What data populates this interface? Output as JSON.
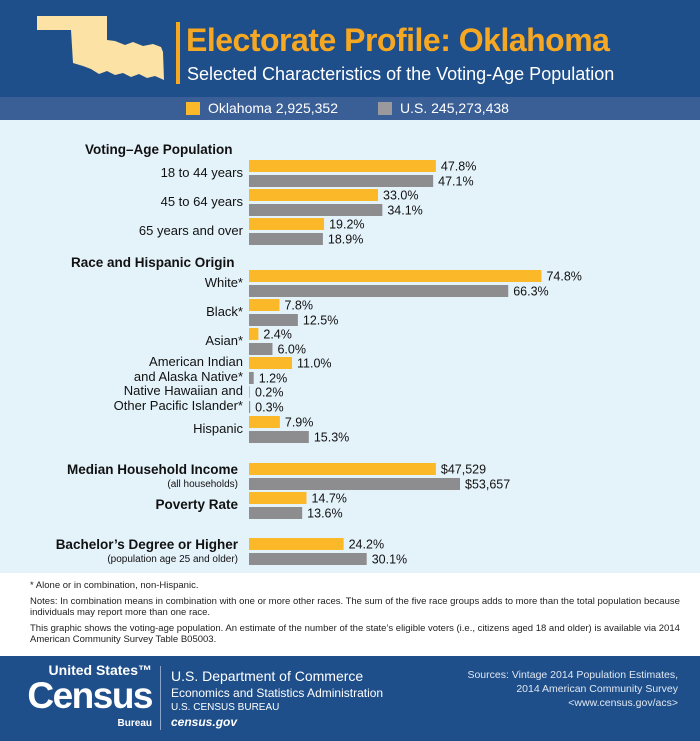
{
  "header": {
    "title": "Electorate Profile: Oklahoma",
    "subtitle": "Selected Characteristics of the Voting-Age Population"
  },
  "legend": {
    "state_label": "Oklahoma 2,925,352",
    "us_label": "U.S. 245,273,438"
  },
  "colors": {
    "state": "#fbb829",
    "us": "#8d8d8f",
    "header_bg": "#1f4f8a",
    "chart_bg": "#e4f2fa",
    "accent": "#f7a823"
  },
  "chart_data": {
    "type": "bar",
    "orientation": "horizontal",
    "series": [
      {
        "name": "Oklahoma 2,925,352",
        "color": "#fbb829"
      },
      {
        "name": "U.S. 245,273,438",
        "color": "#8d8d8f"
      }
    ],
    "sections": [
      {
        "heading": "Voting–Age Population",
        "heading_sub": "",
        "rows": [
          {
            "label": [
              "18 to 44 years"
            ],
            "values": [
              47.8,
              47.1
            ],
            "value_labels": [
              "47.8%",
              "47.1%"
            ]
          },
          {
            "label": [
              "45 to 64 years"
            ],
            "values": [
              33.0,
              34.1
            ],
            "value_labels": [
              "33.0%",
              "34.1%"
            ]
          },
          {
            "label": [
              "65 years and over"
            ],
            "values": [
              19.2,
              18.9
            ],
            "value_labels": [
              "19.2%",
              "18.9%"
            ]
          }
        ]
      },
      {
        "heading": "Race and Hispanic Origin",
        "heading_sub": "",
        "rows": [
          {
            "label": [
              "White*"
            ],
            "values": [
              74.8,
              66.3
            ],
            "value_labels": [
              "74.8%",
              "66.3%"
            ]
          },
          {
            "label": [
              "Black*"
            ],
            "values": [
              7.8,
              12.5
            ],
            "value_labels": [
              "7.8%",
              "12.5%"
            ]
          },
          {
            "label": [
              "Asian*"
            ],
            "values": [
              2.4,
              6.0
            ],
            "value_labels": [
              "2.4%",
              "6.0%"
            ]
          },
          {
            "label": [
              "American Indian",
              "and Alaska Native*"
            ],
            "values": [
              11.0,
              1.2
            ],
            "value_labels": [
              "11.0%",
              "1.2%"
            ]
          },
          {
            "label": [
              "Native Hawaiian and",
              "Other Pacific Islander*"
            ],
            "values": [
              0.2,
              0.3
            ],
            "value_labels": [
              "0.2%",
              "0.3%"
            ]
          },
          {
            "label": [
              "Hispanic"
            ],
            "values": [
              7.9,
              15.3
            ],
            "value_labels": [
              "7.9%",
              "15.3%"
            ]
          }
        ]
      },
      {
        "heading": "Median Household Income",
        "heading_sub": "(all households)",
        "rows": [
          {
            "label": [],
            "values": [
              47529,
              53657
            ],
            "value_labels": [
              "$47,529",
              "$53,657"
            ]
          }
        ]
      },
      {
        "heading": "Poverty Rate",
        "heading_sub": "",
        "rows": [
          {
            "label": [],
            "values": [
              14.7,
              13.6
            ],
            "value_labels": [
              "14.7%",
              "13.6%"
            ]
          }
        ]
      },
      {
        "heading": "Bachelor’s Degree or Higher",
        "heading_sub": "(population age 25 and older)",
        "rows": [
          {
            "label": [],
            "values": [
              24.2,
              30.1
            ],
            "value_labels": [
              "24.2%",
              "30.1%"
            ]
          }
        ]
      }
    ]
  },
  "notes": {
    "footnote": "* Alone or in combination, non-Hispanic.",
    "note1": "Notes: In combination means in combination with one or more other races. The sum of the five race groups adds to more than the total population because individuals may report more than one race.",
    "note2": "This graphic shows the voting-age population. An estimate of the number of the state’s eligible voters (i.e., citizens aged 18 and older) is available via 2014 American Community Survey Table B05003."
  },
  "footer": {
    "logo_us": "United States™",
    "logo_census": "Census",
    "logo_bureau": "Bureau",
    "dept": "U.S. Department of Commerce",
    "esa": "Economics and Statistics Administration",
    "bureau": "U.S. CENSUS BUREAU",
    "url": "census.gov",
    "sources_line1": "Sources: Vintage 2014 Population Estimates,",
    "sources_line2": "2014 American Community Survey",
    "sources_line3": "<www.census.gov/acs>"
  }
}
